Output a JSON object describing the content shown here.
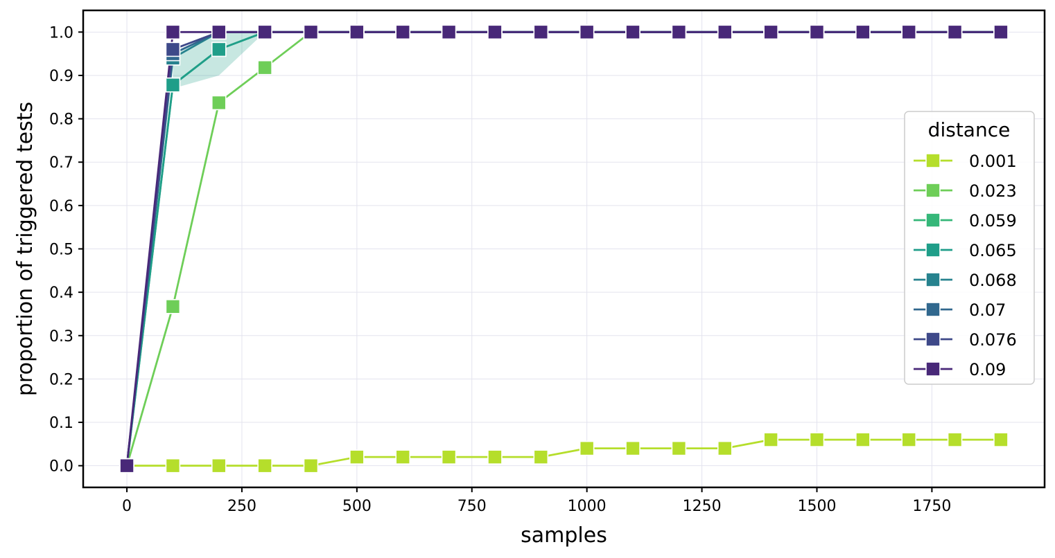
{
  "chart_data": {
    "type": "line",
    "xlabel": "samples",
    "ylabel": "proportion of triggered tests",
    "xlim": [
      -95,
      1995
    ],
    "ylim": [
      -0.05,
      1.05
    ],
    "xticks": [
      0,
      250,
      500,
      750,
      1000,
      1250,
      1500,
      1750
    ],
    "yticks": [
      0.0,
      0.1,
      0.2,
      0.3,
      0.4,
      0.5,
      0.6,
      0.7,
      0.8,
      0.9,
      1.0
    ],
    "grid": true,
    "marker": "square",
    "legend": {
      "title": "distance",
      "placement": "center-right"
    },
    "series": [
      {
        "name": "0.001",
        "color": "#b5de2b",
        "x": [
          0,
          100,
          200,
          300,
          400,
          500,
          600,
          700,
          800,
          900,
          1000,
          1100,
          1200,
          1300,
          1400,
          1500,
          1600,
          1700,
          1800,
          1900
        ],
        "y": [
          0.0,
          0.0,
          0.0,
          0.0,
          0.0,
          0.02,
          0.02,
          0.02,
          0.02,
          0.02,
          0.04,
          0.04,
          0.04,
          0.04,
          0.06,
          0.06,
          0.06,
          0.06,
          0.06,
          0.06
        ]
      },
      {
        "name": "0.023",
        "color": "#6ece58",
        "x": [
          0,
          100,
          200,
          300,
          400,
          500,
          600,
          700,
          800,
          900,
          1000,
          1100,
          1200,
          1300,
          1400,
          1500,
          1600,
          1700,
          1800,
          1900
        ],
        "y": [
          0.0,
          0.367,
          0.837,
          0.918,
          1.0,
          1.0,
          1.0,
          1.0,
          1.0,
          1.0,
          1.0,
          1.0,
          1.0,
          1.0,
          1.0,
          1.0,
          1.0,
          1.0,
          1.0,
          1.0
        ]
      },
      {
        "name": "0.059",
        "color": "#35b779",
        "x": [
          0,
          100,
          200,
          300,
          400,
          500,
          600,
          700,
          800,
          900,
          1000,
          1100,
          1200,
          1300,
          1400,
          1500,
          1600,
          1700,
          1800,
          1900
        ],
        "y": [
          0.0,
          0.878,
          0.96,
          1.0,
          1.0,
          1.0,
          1.0,
          1.0,
          1.0,
          1.0,
          1.0,
          1.0,
          1.0,
          1.0,
          1.0,
          1.0,
          1.0,
          1.0,
          1.0,
          1.0
        ]
      },
      {
        "name": "0.065",
        "color": "#1f9e89",
        "x": [
          0,
          100,
          200,
          300,
          400,
          500,
          600,
          700,
          800,
          900,
          1000,
          1100,
          1200,
          1300,
          1400,
          1500,
          1600,
          1700,
          1800,
          1900
        ],
        "y": [
          0.0,
          0.878,
          0.96,
          1.0,
          1.0,
          1.0,
          1.0,
          1.0,
          1.0,
          1.0,
          1.0,
          1.0,
          1.0,
          1.0,
          1.0,
          1.0,
          1.0,
          1.0,
          1.0,
          1.0
        ]
      },
      {
        "name": "0.068",
        "color": "#26828e",
        "x": [
          0,
          100,
          200,
          300,
          400,
          500,
          600,
          700,
          800,
          900,
          1000,
          1100,
          1200,
          1300,
          1400,
          1500,
          1600,
          1700,
          1800,
          1900
        ],
        "y": [
          0.0,
          0.94,
          1.0,
          1.0,
          1.0,
          1.0,
          1.0,
          1.0,
          1.0,
          1.0,
          1.0,
          1.0,
          1.0,
          1.0,
          1.0,
          1.0,
          1.0,
          1.0,
          1.0,
          1.0
        ]
      },
      {
        "name": "0.07",
        "color": "#31688e",
        "x": [
          0,
          100,
          200,
          300,
          400,
          500,
          600,
          700,
          800,
          900,
          1000,
          1100,
          1200,
          1300,
          1400,
          1500,
          1600,
          1700,
          1800,
          1900
        ],
        "y": [
          0.0,
          0.95,
          1.0,
          1.0,
          1.0,
          1.0,
          1.0,
          1.0,
          1.0,
          1.0,
          1.0,
          1.0,
          1.0,
          1.0,
          1.0,
          1.0,
          1.0,
          1.0,
          1.0,
          1.0
        ]
      },
      {
        "name": "0.076",
        "color": "#3e4989",
        "x": [
          0,
          100,
          200,
          300,
          400,
          500,
          600,
          700,
          800,
          900,
          1000,
          1100,
          1200,
          1300,
          1400,
          1500,
          1600,
          1700,
          1800,
          1900
        ],
        "y": [
          0.0,
          0.96,
          1.0,
          1.0,
          1.0,
          1.0,
          1.0,
          1.0,
          1.0,
          1.0,
          1.0,
          1.0,
          1.0,
          1.0,
          1.0,
          1.0,
          1.0,
          1.0,
          1.0,
          1.0
        ]
      },
      {
        "name": "0.09",
        "color": "#482878",
        "x": [
          0,
          100,
          200,
          300,
          400,
          500,
          600,
          700,
          800,
          900,
          1000,
          1100,
          1200,
          1300,
          1400,
          1500,
          1600,
          1700,
          1800,
          1900
        ],
        "y": [
          0.0,
          1.0,
          1.0,
          1.0,
          1.0,
          1.0,
          1.0,
          1.0,
          1.0,
          1.0,
          1.0,
          1.0,
          1.0,
          1.0,
          1.0,
          1.0,
          1.0,
          1.0,
          1.0,
          1.0
        ]
      }
    ]
  }
}
